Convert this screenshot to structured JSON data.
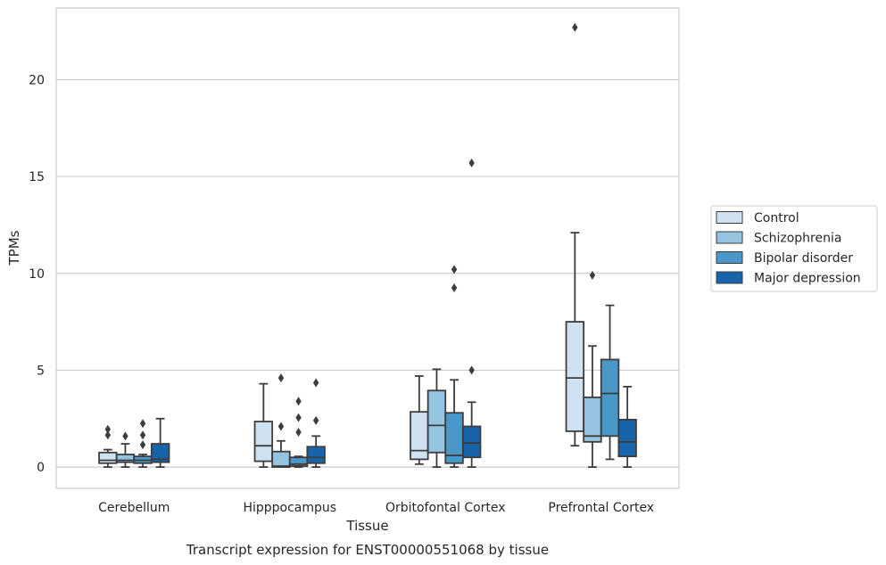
{
  "chart_data": {
    "type": "boxplot",
    "caption": "Transcript expression for ENST00000551068 by tissue",
    "xlabel": "Tissue",
    "ylabel": "TPMs",
    "ylim": [
      -1.1,
      23.7
    ],
    "yticks": [
      0,
      5,
      10,
      15,
      20
    ],
    "grid": "horizontal",
    "legend_position": "right",
    "categories": [
      "Cerebellum",
      "Hipppocampus",
      "Orbitofontal Cortex",
      "Prefrontal Cortex"
    ],
    "series": [
      {
        "name": "Control",
        "color": "#d0e1f2",
        "boxes": [
          {
            "whislo": 0.0,
            "q1": 0.2,
            "med": 0.35,
            "q3": 0.75,
            "whishi": 0.9,
            "fliers": [
              1.65,
              1.95
            ]
          },
          {
            "whislo": 0.0,
            "q1": 0.3,
            "med": 1.1,
            "q3": 2.35,
            "whishi": 4.3,
            "fliers": []
          },
          {
            "whislo": 0.15,
            "q1": 0.4,
            "med": 0.85,
            "q3": 2.85,
            "whishi": 4.7,
            "fliers": []
          },
          {
            "whislo": 1.1,
            "q1": 1.85,
            "med": 4.6,
            "q3": 7.5,
            "whishi": 12.1,
            "fliers": [
              22.7
            ]
          }
        ]
      },
      {
        "name": "Schizophrenia",
        "color": "#94c4df",
        "boxes": [
          {
            "whislo": 0.0,
            "q1": 0.25,
            "med": 0.35,
            "q3": 0.65,
            "whishi": 1.2,
            "fliers": [
              1.6
            ]
          },
          {
            "whislo": 0.0,
            "q1": 0.0,
            "med": 0.05,
            "q3": 0.8,
            "whishi": 1.35,
            "fliers": [
              2.1,
              4.6
            ]
          },
          {
            "whislo": 0.0,
            "q1": 0.75,
            "med": 2.15,
            "q3": 3.95,
            "whishi": 5.05,
            "fliers": []
          },
          {
            "whislo": 0.0,
            "q1": 1.3,
            "med": 1.6,
            "q3": 3.6,
            "whishi": 6.25,
            "fliers": [
              9.9
            ]
          }
        ]
      },
      {
        "name": "Bipolar disorder",
        "color": "#4a98c9",
        "boxes": [
          {
            "whislo": 0.0,
            "q1": 0.2,
            "med": 0.35,
            "q3": 0.55,
            "whishi": 0.65,
            "fliers": [
              1.15,
              1.65,
              2.25
            ]
          },
          {
            "whislo": 0.0,
            "q1": 0.05,
            "med": 0.15,
            "q3": 0.5,
            "whishi": 0.55,
            "fliers": [
              1.8,
              2.55,
              3.4
            ]
          },
          {
            "whislo": 0.0,
            "q1": 0.2,
            "med": 0.6,
            "q3": 2.8,
            "whishi": 4.5,
            "fliers": [
              9.25,
              10.2
            ]
          },
          {
            "whislo": 0.4,
            "q1": 1.6,
            "med": 3.8,
            "q3": 5.55,
            "whishi": 8.35,
            "fliers": []
          }
        ]
      },
      {
        "name": "Major depression",
        "color": "#1764ab",
        "boxes": [
          {
            "whislo": 0.0,
            "q1": 0.25,
            "med": 0.4,
            "q3": 1.2,
            "whishi": 2.5,
            "fliers": []
          },
          {
            "whislo": 0.0,
            "q1": 0.2,
            "med": 0.5,
            "q3": 1.05,
            "whishi": 1.6,
            "fliers": [
              2.4,
              4.35
            ]
          },
          {
            "whislo": 0.0,
            "q1": 0.5,
            "med": 1.25,
            "q3": 2.1,
            "whishi": 3.35,
            "fliers": [
              5.0,
              15.7
            ]
          },
          {
            "whislo": 0.0,
            "q1": 0.55,
            "med": 1.3,
            "q3": 2.45,
            "whishi": 4.15,
            "fliers": []
          }
        ]
      }
    ]
  }
}
